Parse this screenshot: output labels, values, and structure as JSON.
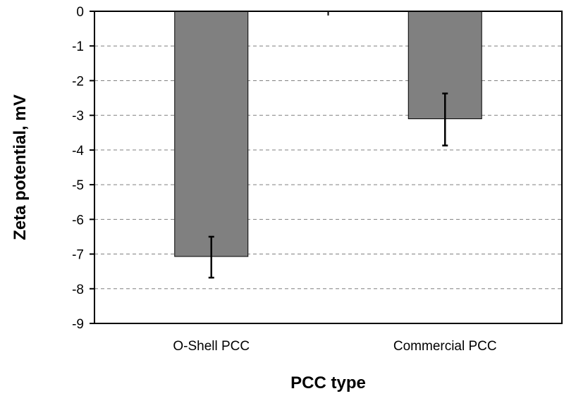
{
  "chart_data": {
    "type": "bar",
    "title": "",
    "xlabel": "PCC type",
    "ylabel": "Zeta potential, mV",
    "categories": [
      "O-Shell PCC",
      "Commercial PCC"
    ],
    "values": [
      -7.07,
      -3.1
    ],
    "error_low": [
      -7.68,
      -3.87
    ],
    "error_high": [
      -6.5,
      -2.37
    ],
    "ylim": [
      -9,
      0
    ],
    "yticks": [
      0,
      -1,
      -2,
      -3,
      -4,
      -5,
      -6,
      -7,
      -8,
      -9
    ],
    "ytick_labels": [
      "0",
      "-1",
      "-2",
      "-3",
      "-4",
      "-5",
      "-6",
      "-7",
      "-8",
      "-9"
    ],
    "grid": "horizontal dashed",
    "legend": "none",
    "bar_color": "#808080",
    "bar_edge_color": "#000000",
    "gridline_color": "#808080"
  }
}
